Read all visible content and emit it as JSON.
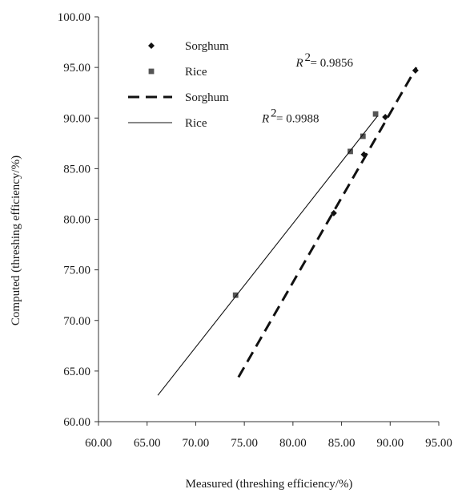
{
  "chart_data": {
    "type": "scatter",
    "xlabel": "Measured (threshing efficiency/%)",
    "ylabel": "Computed (threshing efficiency/%)",
    "xlim": [
      60,
      95
    ],
    "ylim": [
      60,
      100
    ],
    "x_ticks": [
      "60.00",
      "65.00",
      "70.00",
      "75.00",
      "80.00",
      "85.00",
      "90.00",
      "95.00"
    ],
    "y_ticks": [
      "60.00",
      "65.00",
      "70.00",
      "75.00",
      "80.00",
      "85.00",
      "90.00",
      "95.00",
      "100.00"
    ],
    "grid": false,
    "legend_position": "top-left",
    "series": [
      {
        "name": "Sorghum",
        "kind": "points",
        "marker": "diamond",
        "color": "#111111",
        "points": [
          {
            "x": 84.2,
            "y": 80.6
          },
          {
            "x": 87.3,
            "y": 86.4
          },
          {
            "x": 89.5,
            "y": 90.1
          },
          {
            "x": 92.6,
            "y": 94.7
          }
        ]
      },
      {
        "name": "Rice",
        "kind": "points",
        "marker": "square",
        "color": "#555555",
        "points": [
          {
            "x": 74.1,
            "y": 72.5
          },
          {
            "x": 85.9,
            "y": 86.7
          },
          {
            "x": 87.2,
            "y": 88.2
          },
          {
            "x": 88.5,
            "y": 90.4
          }
        ]
      },
      {
        "name": "Sorghum",
        "kind": "fit-line",
        "dash": "dashed",
        "color": "#111111",
        "points": [
          {
            "x": 74.4,
            "y": 64.4
          },
          {
            "x": 92.7,
            "y": 95.0
          }
        ]
      },
      {
        "name": "Rice",
        "kind": "fit-line",
        "dash": "solid",
        "color": "#111111",
        "points": [
          {
            "x": 66.1,
            "y": 62.6
          },
          {
            "x": 88.7,
            "y": 90.2
          }
        ]
      }
    ],
    "annotations": [
      {
        "base": "R",
        "exponent": "2",
        "rest": "= 0.9856",
        "x": 80.3,
        "y": 95.1
      },
      {
        "base": "R",
        "exponent": "2",
        "rest": "= 0.9988",
        "x": 76.8,
        "y": 89.6
      }
    ]
  }
}
